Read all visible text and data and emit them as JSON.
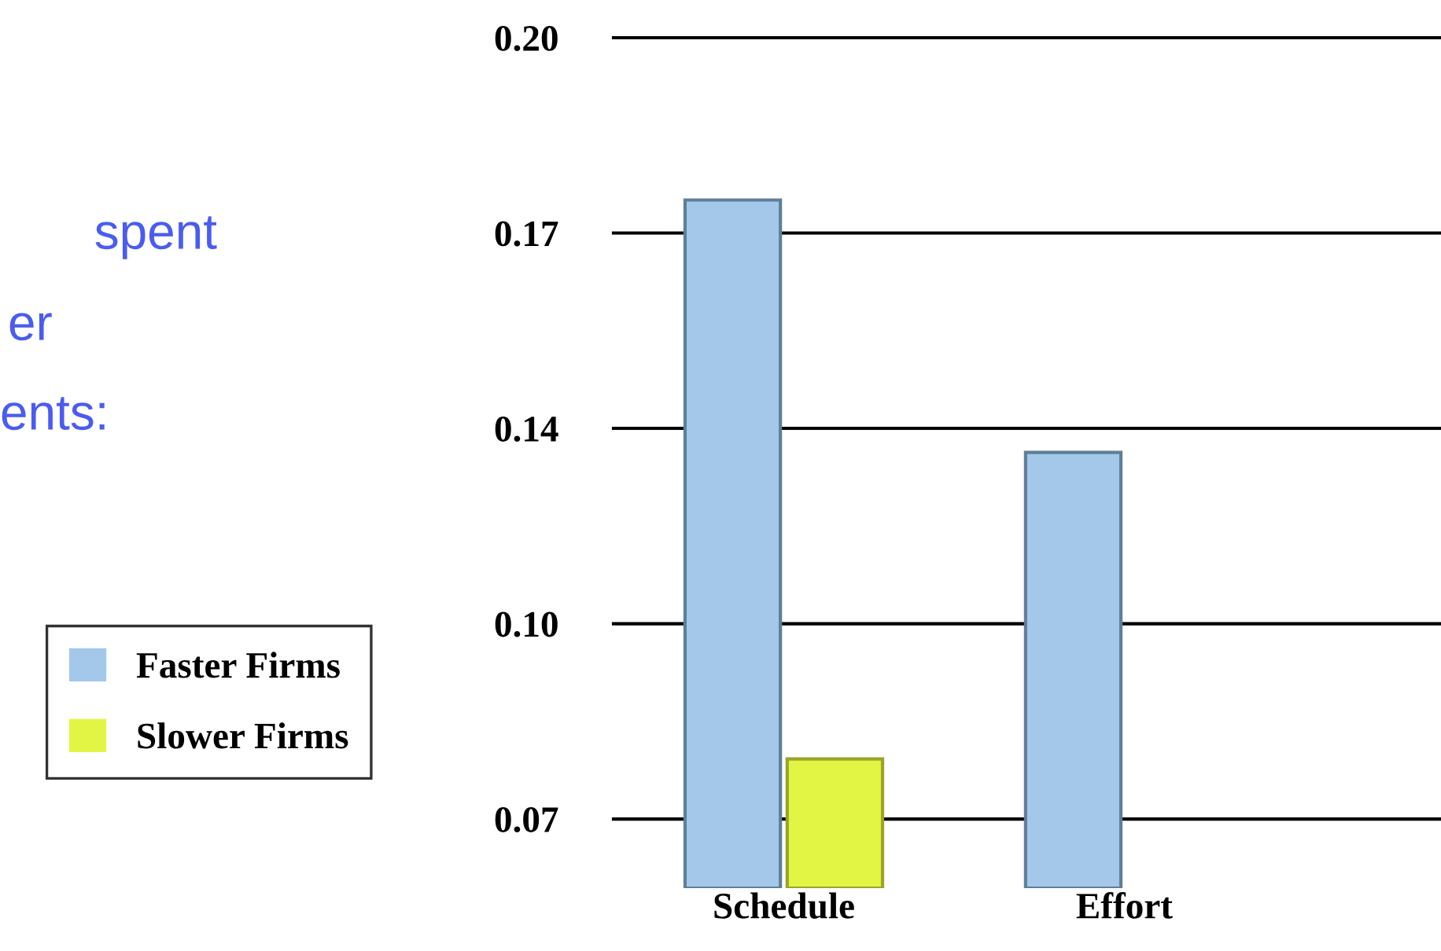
{
  "chart_data": {
    "type": "bar",
    "categories": [
      "Schedule",
      "Effort"
    ],
    "series": [
      {
        "name": "Faster Firms",
        "color": "#a3c8ea",
        "values": [
          0.173,
          0.131
        ]
      },
      {
        "name": "Slower Firms",
        "color": "#e2f545",
        "values": [
          0.08,
          null
        ]
      }
    ],
    "ylim": [
      0.0585,
      0.2
    ],
    "yticks": [
      {
        "value": 0.07,
        "label": "0.07"
      },
      {
        "value": 0.1025,
        "label": "0.10"
      },
      {
        "value": 0.135,
        "label": "0.14"
      },
      {
        "value": 0.1675,
        "label": "0.17"
      },
      {
        "value": 0.2,
        "label": "0.20"
      }
    ],
    "grid": "y",
    "legend": "left",
    "annotations": [
      "spent",
      "er",
      "ents:"
    ]
  }
}
